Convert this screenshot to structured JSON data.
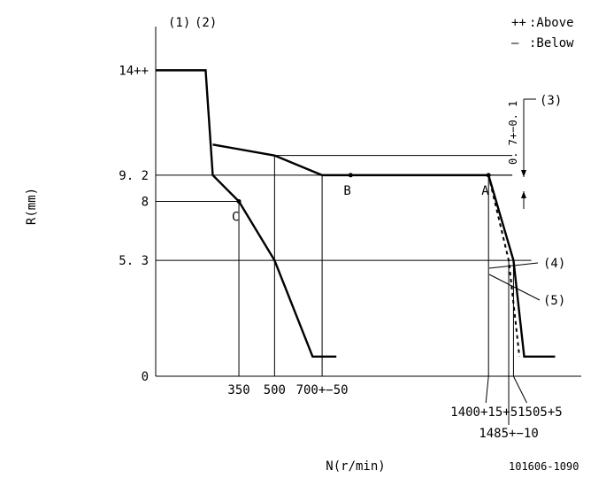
{
  "chart_data": {
    "type": "line",
    "title": "",
    "xlabel": "N(r/min)",
    "ylabel": "R(mm)",
    "header_labels": [
      "(1)",
      "(2)"
    ],
    "legend": [
      {
        "symbol": "++",
        "text": ":Above"
      },
      {
        "symbol": "—",
        "text": ":Below"
      }
    ],
    "y_ticks": [
      {
        "value": 14,
        "label": "14++"
      },
      {
        "value": 9.2,
        "label": "9. 2"
      },
      {
        "value": 8,
        "label": "8"
      },
      {
        "value": 5.3,
        "label": "5. 3"
      },
      {
        "value": 0,
        "label": "0"
      }
    ],
    "x_ticks": [
      {
        "value": 350,
        "label": "350"
      },
      {
        "value": 500,
        "label": "500"
      },
      {
        "value": 700,
        "label": "700+−50"
      },
      {
        "value": 1400,
        "label": "1400+15+5"
      },
      {
        "value": 1485,
        "label": "1485+−10"
      },
      {
        "value": 1505,
        "label": "1505+5"
      }
    ],
    "points": [
      {
        "name": "C",
        "x": 350,
        "y": 8
      },
      {
        "name": "B",
        "x": 820,
        "y": 9.2
      },
      {
        "name": "A",
        "x": 1400,
        "y": 9.2
      }
    ],
    "series": [
      {
        "style": "solid",
        "x": [
          0,
          210,
          240,
          350,
          500,
          660,
          760
        ],
        "y": [
          14,
          14,
          9.2,
          8,
          5.3,
          0.9,
          0.9
        ]
      },
      {
        "style": "solid",
        "x": [
          240,
          500,
          700,
          1400,
          1505,
          1550,
          1680
        ],
        "y": [
          10.6,
          10.1,
          9.2,
          9.2,
          5.3,
          0.9,
          0.9
        ]
      },
      {
        "style": "dashed",
        "x": [
          1400,
          1485,
          1530
        ],
        "y": [
          9.2,
          5.3,
          0.9
        ]
      }
    ],
    "callouts": [
      "(3)",
      "(4)",
      "(5)"
    ],
    "tolerance_text": "0. 7+−0. 1",
    "code": "101606-1090",
    "xlim": [
      0,
      1790
    ],
    "ylim": [
      0,
      16
    ]
  }
}
